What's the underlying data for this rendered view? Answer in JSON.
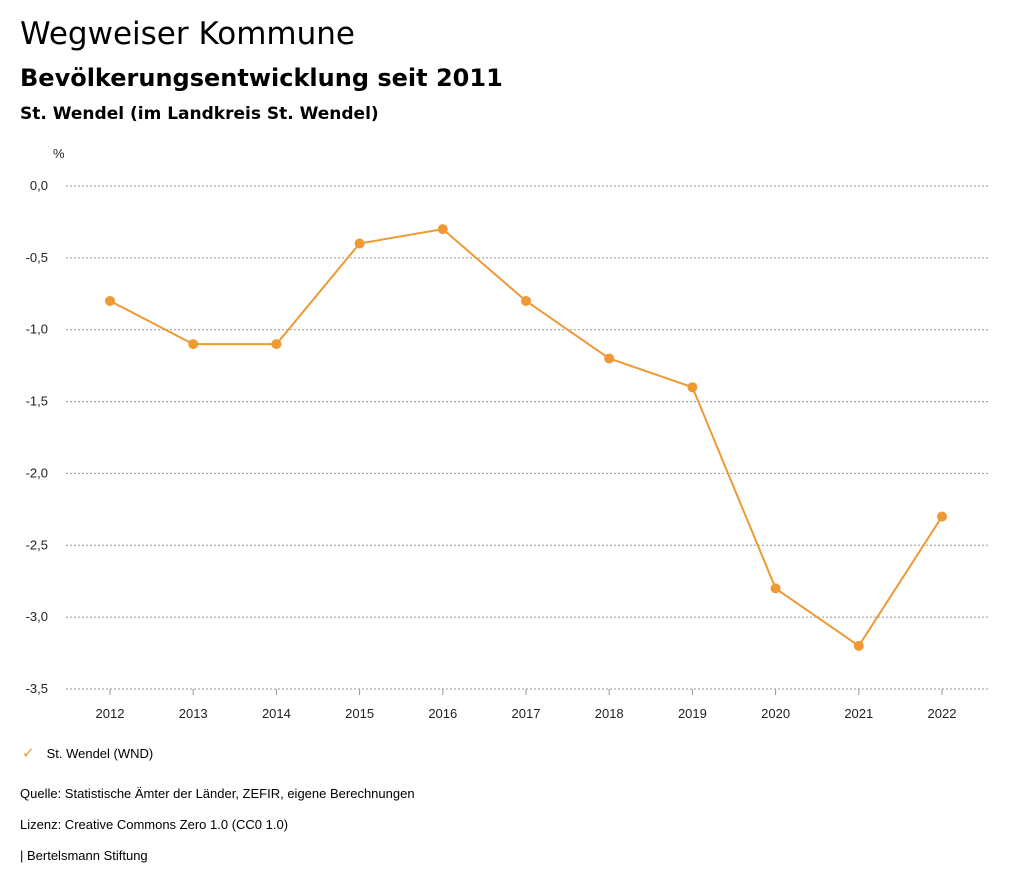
{
  "header": {
    "title": "Wegweiser Kommune",
    "subtitle": "Bevölkerungsentwicklung seit 2011",
    "region": "St. Wendel (im Landkreis St. Wendel)"
  },
  "chart_data": {
    "type": "line",
    "title": "Bevölkerungsentwicklung seit 2011",
    "ylabel": "%",
    "xlabel": "",
    "x": [
      "2012",
      "2013",
      "2014",
      "2015",
      "2016",
      "2017",
      "2018",
      "2019",
      "2020",
      "2021",
      "2022"
    ],
    "yticks": [
      0.0,
      -0.5,
      -1.0,
      -1.5,
      -2.0,
      -2.5,
      -3.0,
      -3.5
    ],
    "ytick_labels": [
      "0,0",
      "-0,5",
      "-1,0",
      "-1,5",
      "-2,0",
      "-2,5",
      "-3,0",
      "-3,5"
    ],
    "ylim": [
      -3.5,
      0.0
    ],
    "grid": true,
    "series": [
      {
        "name": "St. Wendel (WND)",
        "color": "#ee9933",
        "values": [
          -0.8,
          -1.1,
          -1.1,
          -0.4,
          -0.3,
          -0.8,
          -1.2,
          -1.4,
          -2.8,
          -3.2,
          -2.3
        ]
      }
    ]
  },
  "legend": {
    "icon": "check-icon",
    "label": "St. Wendel (WND)"
  },
  "footer": {
    "source": "Quelle: Statistische Ämter der Länder, ZEFIR, eigene Berechnungen",
    "license": "Lizenz: Creative Commons Zero 1.0 (CC0 1.0)",
    "publisher": "| Bertelsmann Stiftung"
  }
}
